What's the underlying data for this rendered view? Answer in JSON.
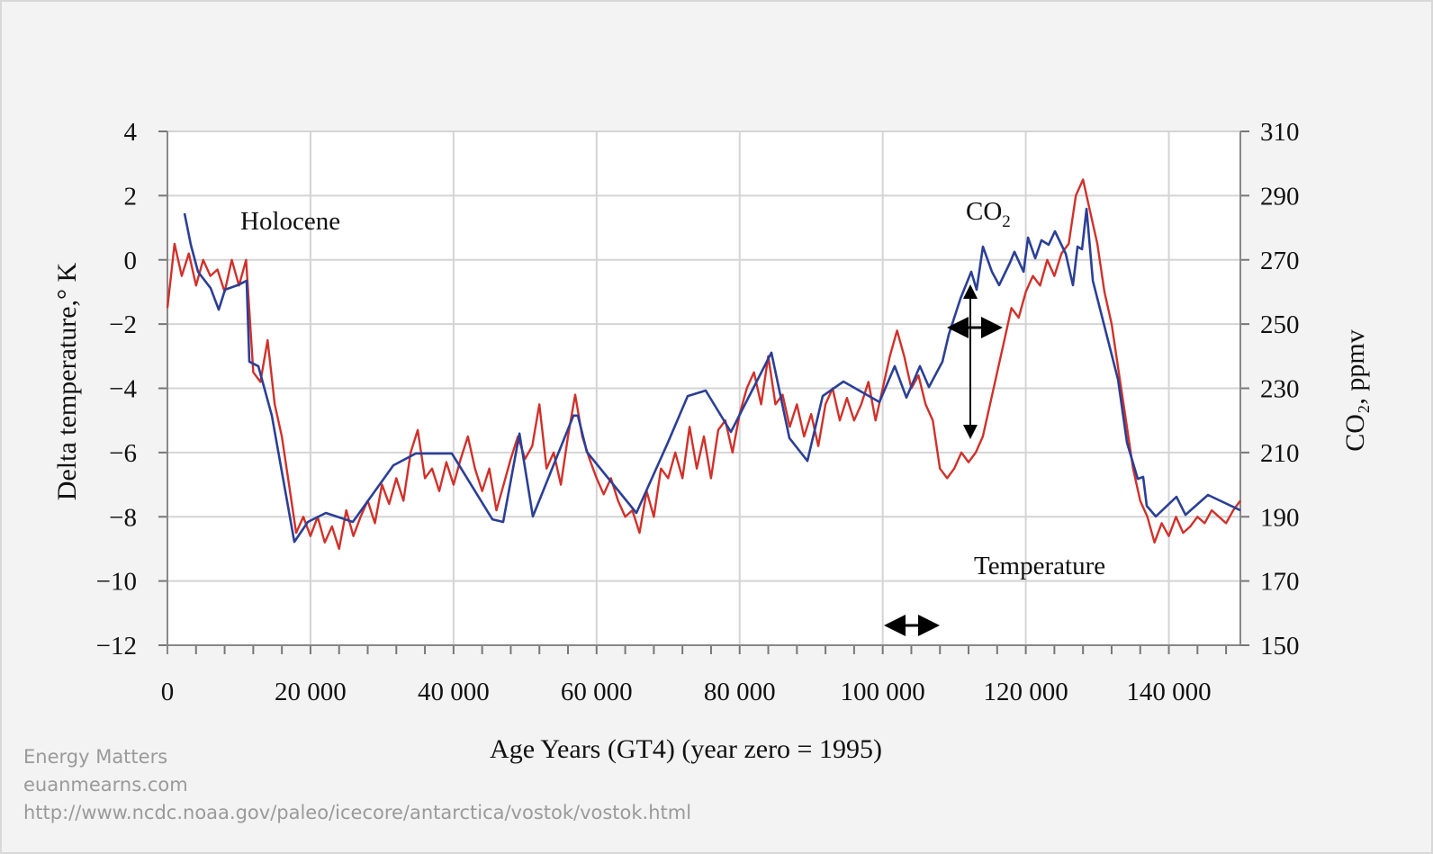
{
  "chart_data": {
    "type": "line",
    "xlabel": "Age Years (GT4) (year zero = 1995)",
    "ylabel_left": "Delta temperature,° K",
    "ylabel_right": "CO₂, ppmv",
    "xlim": [
      0,
      150000
    ],
    "ylim_left": [
      -12,
      4
    ],
    "ylim_right": [
      150,
      310
    ],
    "x_ticks": [
      0,
      20000,
      40000,
      60000,
      80000,
      100000,
      120000,
      140000
    ],
    "x_tick_labels": [
      "0",
      "20 000",
      "40 000",
      "60 000",
      "80 000",
      "100 000",
      "120 000",
      "140 000"
    ],
    "y_left_ticks": [
      4,
      2,
      0,
      -2,
      -4,
      -6,
      -8,
      -10,
      -12
    ],
    "y_left_tick_labels": [
      "4",
      "2",
      "0",
      "−2",
      "−4",
      "−6",
      "−8",
      "−10",
      "−12"
    ],
    "y_right_ticks": [
      310,
      290,
      270,
      250,
      230,
      210,
      190,
      170,
      150
    ],
    "y_right_tick_labels": [
      "310",
      "290",
      "270",
      "250",
      "230",
      "210",
      "190",
      "170",
      "150"
    ],
    "grid": true,
    "annotations": {
      "holocene": "Holocene",
      "co2_label": "CO",
      "co2_sub": "2",
      "temperature_label": "Temperature"
    },
    "series": [
      {
        "name": "Temperature",
        "axis": "left",
        "color": "#d0312a",
        "x": [
          0,
          1000,
          2000,
          3000,
          4000,
          5000,
          6000,
          7000,
          8000,
          9000,
          10000,
          11000,
          12000,
          13000,
          14000,
          15000,
          16000,
          17000,
          18000,
          19000,
          20000,
          21000,
          22000,
          23000,
          24000,
          25000,
          26000,
          27000,
          28000,
          29000,
          30000,
          31000,
          32000,
          33000,
          34000,
          35000,
          36000,
          37000,
          38000,
          39000,
          40000,
          41000,
          42000,
          43000,
          44000,
          45000,
          46000,
          47000,
          48000,
          49000,
          50000,
          51000,
          52000,
          53000,
          54000,
          55000,
          56000,
          57000,
          58000,
          59000,
          60000,
          61000,
          62000,
          63000,
          64000,
          65000,
          66000,
          67000,
          68000,
          69000,
          70000,
          71000,
          72000,
          73000,
          74000,
          75000,
          76000,
          77000,
          78000,
          79000,
          80000,
          81000,
          82000,
          83000,
          84000,
          85000,
          86000,
          87000,
          88000,
          89000,
          90000,
          91000,
          92000,
          93000,
          94000,
          95000,
          96000,
          97000,
          98000,
          99000,
          100000,
          101000,
          102000,
          103000,
          104000,
          105000,
          106000,
          107000,
          108000,
          109000,
          110000,
          111000,
          112000,
          113000,
          114000,
          115000,
          116000,
          117000,
          118000,
          119000,
          120000,
          121000,
          122000,
          123000,
          124000,
          125000,
          126000,
          127000,
          128000,
          129000,
          130000,
          131000,
          132000,
          133000,
          134000,
          135000,
          136000,
          137000,
          138000,
          139000,
          140000,
          141000,
          142000,
          143000,
          144000,
          145000,
          146000,
          147000,
          148000,
          149000,
          150000
        ],
        "values": [
          -1.5,
          0.5,
          -0.5,
          0.2,
          -0.8,
          0,
          -0.5,
          -0.3,
          -1.0,
          0,
          -0.8,
          0,
          -3.5,
          -3.8,
          -2.5,
          -4.5,
          -5.5,
          -7.0,
          -8.5,
          -8.0,
          -8.6,
          -8.0,
          -8.8,
          -8.3,
          -9.0,
          -7.8,
          -8.6,
          -8.0,
          -7.5,
          -8.2,
          -7.0,
          -7.6,
          -6.8,
          -7.5,
          -6.0,
          -5.3,
          -6.8,
          -6.5,
          -7.2,
          -6.3,
          -7.0,
          -6.2,
          -5.5,
          -6.5,
          -7.2,
          -6.5,
          -7.8,
          -7.0,
          -6.2,
          -5.5,
          -6.2,
          -5.8,
          -4.5,
          -6.5,
          -6.0,
          -7.0,
          -5.5,
          -4.2,
          -5.5,
          -6.2,
          -6.8,
          -7.3,
          -6.8,
          -7.5,
          -8.0,
          -7.8,
          -8.5,
          -7.2,
          -8.0,
          -6.5,
          -6.8,
          -6.0,
          -6.8,
          -5.2,
          -6.5,
          -5.5,
          -6.8,
          -5.3,
          -5.0,
          -6.0,
          -4.8,
          -4.0,
          -3.5,
          -4.5,
          -3.0,
          -4.5,
          -4.2,
          -5.2,
          -4.5,
          -5.5,
          -4.8,
          -5.8,
          -4.5,
          -4.0,
          -5.0,
          -4.3,
          -5.0,
          -4.5,
          -3.8,
          -5.0,
          -4.0,
          -3.0,
          -2.2,
          -3.0,
          -4.0,
          -3.6,
          -4.5,
          -5.0,
          -6.5,
          -6.8,
          -6.5,
          -6.0,
          -6.3,
          -6.0,
          -5.5,
          -4.5,
          -3.5,
          -2.5,
          -1.5,
          -1.8,
          -1.0,
          -0.5,
          -0.8,
          0,
          -0.5,
          0.2,
          0.5,
          2.0,
          2.5,
          1.5,
          0.5,
          -1.0,
          -2.0,
          -3.5,
          -5.0,
          -6.5,
          -7.5,
          -8.0,
          -8.8,
          -8.2,
          -8.6,
          -8.0,
          -8.5,
          -8.3,
          -8.0,
          -8.2,
          -7.8,
          -8.0,
          -8.2,
          -7.8,
          -7.5
        ]
      },
      {
        "name": "CO₂",
        "axis": "right",
        "color": "#2b3f96",
        "x": [
          2390,
          3270,
          4280,
          6040,
          7170,
          8050,
          9820,
          11070,
          11450,
          12710,
          14600,
          17740,
          19630,
          22150,
          25920,
          31590,
          34730,
          39770,
          45430,
          46940,
          49210,
          51090,
          56760,
          57380,
          58640,
          65560,
          69970,
          72740,
          75250,
          78780,
          84440,
          86960,
          89470,
          91610,
          94510,
          99540,
          101680,
          103310,
          105200,
          106460,
          108350,
          109230,
          110870,
          112380,
          113130,
          114010,
          115270,
          116280,
          117790,
          118420,
          119680,
          120310,
          121320,
          122190,
          123200,
          124080,
          125590,
          126600,
          127230,
          127860,
          128490,
          129370,
          132900,
          134140,
          135660,
          136410,
          136910,
          138170,
          141060,
          142320,
          145470,
          150000
        ],
        "values": [
          284.5,
          274.7,
          266.3,
          261.2,
          254.5,
          260.7,
          262.1,
          263.5,
          238.3,
          236.9,
          221.5,
          182.2,
          188.4,
          191.2,
          188.4,
          206.0,
          209.7,
          209.7,
          189.2,
          188.4,
          215.9,
          190.1,
          221.5,
          221.5,
          210.2,
          191.2,
          213.1,
          227.6,
          229.3,
          216.4,
          241.1,
          214.5,
          207.4,
          227.6,
          232.1,
          225.7,
          236.9,
          227.1,
          236.9,
          230.4,
          238.3,
          246.7,
          257.9,
          266.3,
          260.7,
          274.1,
          266.3,
          262.1,
          269.1,
          272.5,
          266.3,
          276.9,
          270.5,
          276.1,
          274.7,
          278.9,
          271.9,
          262.1,
          274.1,
          273.3,
          285.9,
          263.5,
          232.7,
          213.1,
          201.8,
          202.4,
          193.4,
          190.1,
          196.2,
          190.6,
          196.8,
          192.0
        ]
      }
    ]
  },
  "credits": {
    "line1": "Energy Matters",
    "line2": "euanmearns.com",
    "line3": "http://www.ncdc.noaa.gov/paleo/icecore/antarctica/vostok/vostok.html"
  }
}
